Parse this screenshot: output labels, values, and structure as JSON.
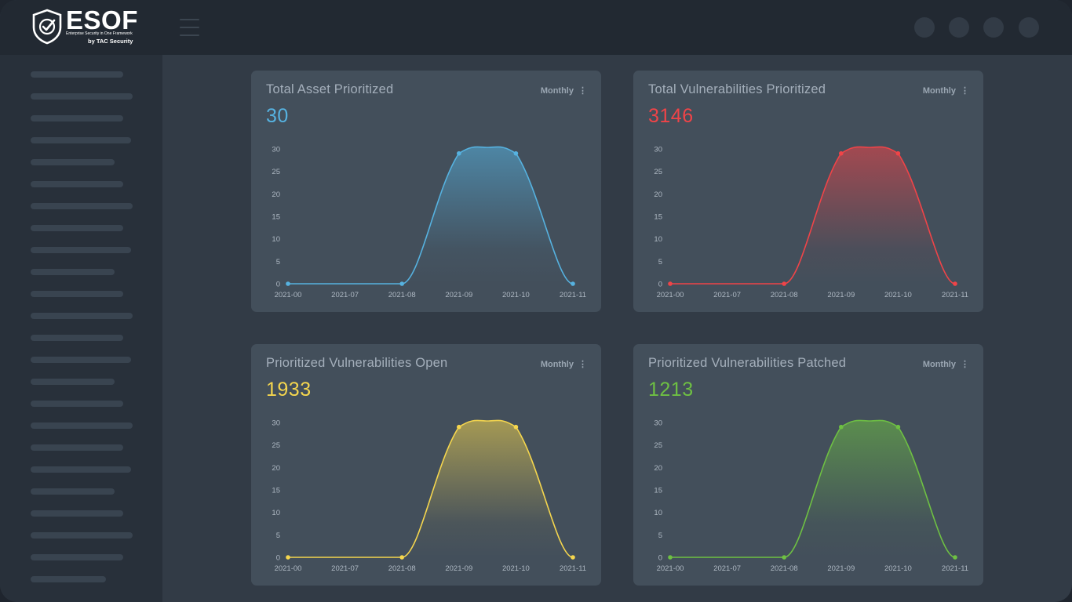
{
  "app": {
    "logo_text": "ESOF",
    "logo_tagline": "Enterprise Security in One Framework",
    "logo_byline": "by TAC Security"
  },
  "colors": {
    "blue": "#56b2e0",
    "red": "#f04448",
    "yellow": "#f5d64e",
    "green": "#6ec043"
  },
  "cards": [
    {
      "title": "Total Asset Prioritized",
      "period": "Monthly",
      "value": "30",
      "color": "#56b2e0"
    },
    {
      "title": "Total Vulnerabilities Prioritized",
      "period": "Monthly",
      "value": "3146",
      "color": "#f04448"
    },
    {
      "title": "Prioritized Vulnerabilities Open",
      "period": "Monthly",
      "value": "1933",
      "color": "#f5d64e"
    },
    {
      "title": "Prioritized Vulnerabilities Patched",
      "period": "Monthly",
      "value": "1213",
      "color": "#6ec043"
    }
  ],
  "chart_data": [
    {
      "type": "area",
      "title": "Total Asset Prioritized",
      "x": [
        "2021-00",
        "2021-07",
        "2021-08",
        "2021-09",
        "2021-10",
        "2021-11"
      ],
      "y_ticks": [
        "0",
        "5",
        "10",
        "15",
        "20",
        "25",
        "30"
      ],
      "ylim": [
        0,
        30
      ],
      "series": [
        {
          "points": [
            {
              "x": "2021-00",
              "y": 0
            },
            {
              "x": "2021-08",
              "y": 0
            },
            {
              "x": "2021-09",
              "y": 29
            },
            {
              "x": "2021-10",
              "y": 29
            },
            {
              "x": "2021-11",
              "y": 0
            }
          ]
        }
      ],
      "color": "#56b2e0"
    },
    {
      "type": "area",
      "title": "Total Vulnerabilities Prioritized",
      "x": [
        "2021-00",
        "2021-07",
        "2021-08",
        "2021-09",
        "2021-10",
        "2021-11"
      ],
      "y_ticks": [
        "0",
        "5",
        "10",
        "15",
        "20",
        "25",
        "30"
      ],
      "ylim": [
        0,
        30
      ],
      "series": [
        {
          "points": [
            {
              "x": "2021-00",
              "y": 0
            },
            {
              "x": "2021-08",
              "y": 0
            },
            {
              "x": "2021-09",
              "y": 29
            },
            {
              "x": "2021-10",
              "y": 29
            },
            {
              "x": "2021-11",
              "y": 0
            }
          ]
        }
      ],
      "color": "#f04448"
    },
    {
      "type": "area",
      "title": "Prioritized Vulnerabilities Open",
      "x": [
        "2021-00",
        "2021-07",
        "2021-08",
        "2021-09",
        "2021-10",
        "2021-11"
      ],
      "y_ticks": [
        "0",
        "5",
        "10",
        "15",
        "20",
        "25",
        "30"
      ],
      "ylim": [
        0,
        30
      ],
      "series": [
        {
          "points": [
            {
              "x": "2021-00",
              "y": 0
            },
            {
              "x": "2021-08",
              "y": 0
            },
            {
              "x": "2021-09",
              "y": 29
            },
            {
              "x": "2021-10",
              "y": 29
            },
            {
              "x": "2021-11",
              "y": 0
            }
          ]
        }
      ],
      "color": "#f5d64e"
    },
    {
      "type": "area",
      "title": "Prioritized Vulnerabilities Patched",
      "x": [
        "2021-00",
        "2021-07",
        "2021-08",
        "2021-09",
        "2021-10",
        "2021-11"
      ],
      "y_ticks": [
        "0",
        "5",
        "10",
        "15",
        "20",
        "25",
        "30"
      ],
      "ylim": [
        0,
        30
      ],
      "series": [
        {
          "points": [
            {
              "x": "2021-00",
              "y": 0
            },
            {
              "x": "2021-08",
              "y": 0
            },
            {
              "x": "2021-09",
              "y": 29
            },
            {
              "x": "2021-10",
              "y": 29
            },
            {
              "x": "2021-11",
              "y": 0
            }
          ]
        }
      ],
      "color": "#6ec043"
    }
  ]
}
